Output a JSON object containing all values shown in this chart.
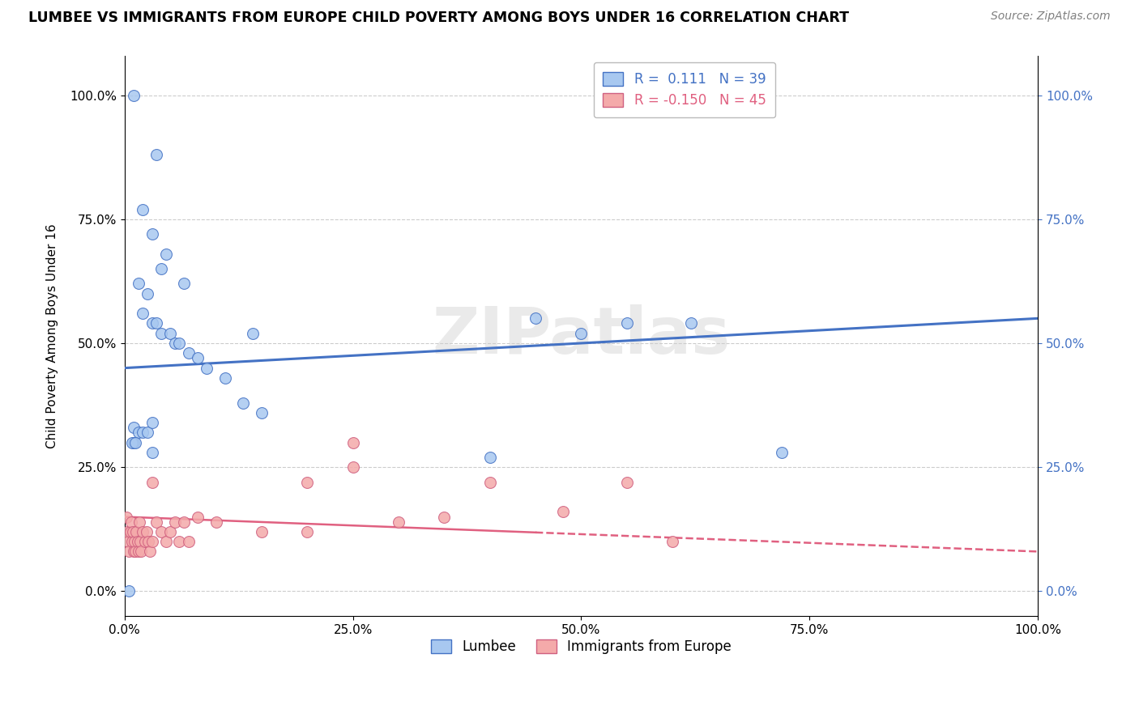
{
  "title": "LUMBEE VS IMMIGRANTS FROM EUROPE CHILD POVERTY AMONG BOYS UNDER 16 CORRELATION CHART",
  "source": "Source: ZipAtlas.com",
  "ylabel": "Child Poverty Among Boys Under 16",
  "lumbee_R": 0.111,
  "lumbee_N": 39,
  "europe_R": -0.15,
  "europe_N": 45,
  "lumbee_color": "#A8C8F0",
  "lumbee_edge_color": "#4472C4",
  "europe_color": "#F4AAAA",
  "europe_edge_color": "#D06080",
  "lumbee_line_color": "#4472C4",
  "europe_line_color": "#E06080",
  "lumbee_x": [
    1.0,
    3.5,
    2.0,
    3.0,
    4.5,
    4.0,
    1.5,
    2.5,
    2.0,
    3.0,
    3.5,
    4.0,
    5.0,
    5.5,
    6.0,
    7.0,
    6.5,
    8.0,
    9.0,
    11.0,
    13.0,
    15.0,
    1.0,
    1.5,
    2.0,
    2.5,
    3.0,
    1.0,
    0.8,
    1.2,
    3.0,
    14.0,
    50.0,
    55.0,
    62.0,
    72.0,
    0.5,
    40.0,
    45.0
  ],
  "lumbee_y": [
    100.0,
    88.0,
    77.0,
    72.0,
    68.0,
    65.0,
    62.0,
    60.0,
    56.0,
    54.0,
    54.0,
    52.0,
    52.0,
    50.0,
    50.0,
    48.0,
    62.0,
    47.0,
    45.0,
    43.0,
    38.0,
    36.0,
    33.0,
    32.0,
    32.0,
    32.0,
    34.0,
    30.0,
    30.0,
    30.0,
    28.0,
    52.0,
    52.0,
    54.0,
    54.0,
    28.0,
    0.0,
    27.0,
    55.0
  ],
  "europe_x": [
    0.2,
    0.3,
    0.4,
    0.5,
    0.6,
    0.7,
    0.8,
    0.9,
    1.0,
    1.1,
    1.2,
    1.3,
    1.4,
    1.5,
    1.6,
    1.7,
    1.8,
    2.0,
    2.2,
    2.4,
    2.6,
    2.8,
    3.0,
    3.5,
    4.0,
    4.5,
    5.0,
    5.5,
    6.0,
    6.5,
    7.0,
    3.0,
    8.0,
    10.0,
    15.0,
    20.0,
    25.0,
    30.0,
    35.0,
    20.0,
    40.0,
    25.0,
    48.0,
    55.0,
    60.0
  ],
  "europe_y": [
    15.0,
    12.0,
    10.0,
    8.0,
    12.0,
    14.0,
    10.0,
    12.0,
    8.0,
    10.0,
    8.0,
    12.0,
    10.0,
    8.0,
    14.0,
    10.0,
    8.0,
    12.0,
    10.0,
    12.0,
    10.0,
    8.0,
    10.0,
    14.0,
    12.0,
    10.0,
    12.0,
    14.0,
    10.0,
    14.0,
    10.0,
    22.0,
    15.0,
    14.0,
    12.0,
    12.0,
    25.0,
    14.0,
    15.0,
    22.0,
    22.0,
    30.0,
    16.0,
    22.0,
    10.0
  ],
  "xticks": [
    0,
    25,
    50,
    75,
    100
  ],
  "yticks": [
    0,
    25,
    50,
    75,
    100
  ],
  "xtick_labels": [
    "0.0%",
    "25.0%",
    "50.0%",
    "75.0%",
    "100.0%"
  ],
  "ytick_labels": [
    "0.0%",
    "25.0%",
    "50.0%",
    "75.0%",
    "100.0%"
  ],
  "right_ytick_labels": [
    "0.0%",
    "25.0%",
    "50.0%",
    "75.0%",
    "100.0%"
  ]
}
